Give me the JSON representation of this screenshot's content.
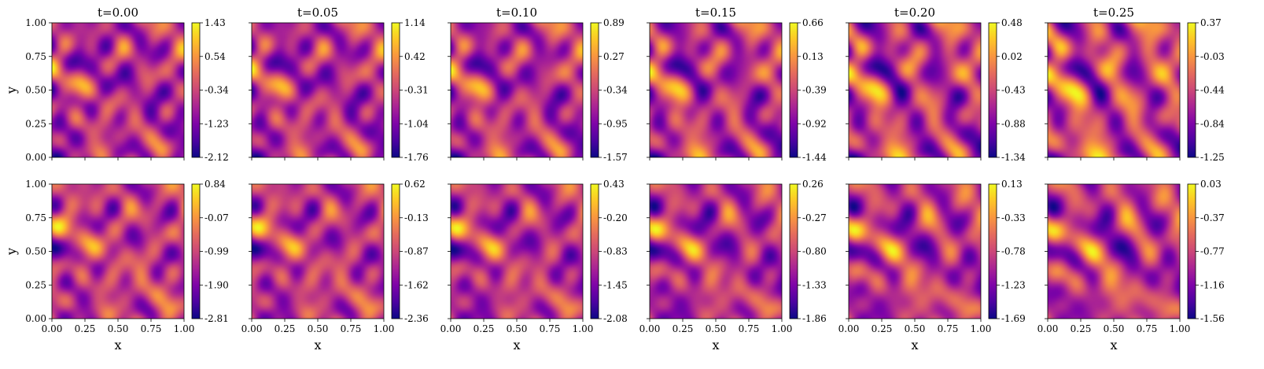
{
  "chart_data": {
    "type": "heatmap",
    "colormap": "plasma",
    "column_titles": [
      "t=0.00",
      "t=0.05",
      "t=0.10",
      "t=0.15",
      "t=0.20",
      "t=0.25"
    ],
    "xlabel": "x",
    "ylabel": "y",
    "xlim": [
      0,
      1
    ],
    "ylim": [
      0,
      1
    ],
    "x_ticks": [
      "0.00",
      "0.25",
      "0.50",
      "0.75",
      "1.00"
    ],
    "y_ticks": [
      "0.00",
      "0.25",
      "0.50",
      "0.75",
      "1.00"
    ],
    "grid": false,
    "rows": [
      {
        "panels": [
          {
            "min": -2.12,
            "max": 1.43,
            "colorbar_ticks": [
              "-2.12",
              "-1.23",
              "-0.34",
              "0.54",
              "1.43"
            ]
          },
          {
            "min": -1.76,
            "max": 1.14,
            "colorbar_ticks": [
              "-1.76",
              "-1.04",
              "-0.31",
              "0.42",
              "1.14"
            ]
          },
          {
            "min": -1.57,
            "max": 0.89,
            "colorbar_ticks": [
              "-1.57",
              "-0.95",
              "-0.34",
              "0.27",
              "0.89"
            ]
          },
          {
            "min": -1.44,
            "max": 0.66,
            "colorbar_ticks": [
              "-1.44",
              "-0.92",
              "-0.39",
              "0.13",
              "0.66"
            ]
          },
          {
            "min": -1.34,
            "max": 0.48,
            "colorbar_ticks": [
              "-1.34",
              "-0.88",
              "-0.43",
              "0.02",
              "0.48"
            ]
          },
          {
            "min": -1.25,
            "max": 0.37,
            "colorbar_ticks": [
              "-1.25",
              "-0.84",
              "-0.44",
              "-0.03",
              "0.37"
            ]
          }
        ]
      },
      {
        "panels": [
          {
            "min": -2.81,
            "max": 0.84,
            "colorbar_ticks": [
              "-2.81",
              "-1.90",
              "-0.99",
              "-0.07",
              "0.84"
            ]
          },
          {
            "min": -2.36,
            "max": 0.62,
            "colorbar_ticks": [
              "-2.36",
              "-1.62",
              "-0.87",
              "-0.13",
              "0.62"
            ]
          },
          {
            "min": -2.08,
            "max": 0.43,
            "colorbar_ticks": [
              "-2.08",
              "-1.45",
              "-0.83",
              "-0.20",
              "0.43"
            ]
          },
          {
            "min": -1.86,
            "max": 0.26,
            "colorbar_ticks": [
              "-1.86",
              "-1.33",
              "-0.80",
              "-0.27",
              "0.26"
            ]
          },
          {
            "min": -1.69,
            "max": 0.13,
            "colorbar_ticks": [
              "-1.69",
              "-1.23",
              "-0.78",
              "-0.33",
              "0.13"
            ]
          },
          {
            "min": -1.56,
            "max": 0.03,
            "colorbar_ticks": [
              "-1.56",
              "-1.16",
              "-0.77",
              "-0.37",
              "0.03"
            ]
          }
        ]
      }
    ]
  }
}
